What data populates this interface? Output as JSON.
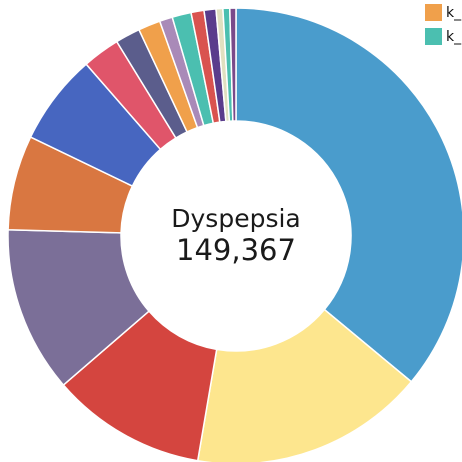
{
  "chart_data": {
    "type": "pie",
    "title": "",
    "center": {
      "label": "Dyspepsia",
      "value": "149,367"
    },
    "legend": {
      "placement": "top-right",
      "items": [
        {
          "label": "k_",
          "color": "#f0a04b"
        },
        {
          "label": "k_",
          "color": "#4bbfb0"
        }
      ]
    },
    "slices": [
      {
        "value": 149367,
        "color": "#4a9ccc"
      },
      {
        "value": 69000,
        "color": "#fde68e"
      },
      {
        "value": 45500,
        "color": "#d4453f"
      },
      {
        "value": 48800,
        "color": "#7b6f98"
      },
      {
        "value": 27800,
        "color": "#d97741"
      },
      {
        "value": 26700,
        "color": "#4766c0"
      },
      {
        "value": 11000,
        "color": "#e0556a"
      },
      {
        "value": 7300,
        "color": "#5b5d8c"
      },
      {
        "value": 6500,
        "color": "#f0a04b"
      },
      {
        "value": 3800,
        "color": "#a98ab8"
      },
      {
        "value": 5600,
        "color": "#4bbfb0"
      },
      {
        "value": 3800,
        "color": "#d9534f"
      },
      {
        "value": 3500,
        "color": "#5a3c8c"
      },
      {
        "value": 2000,
        "color": "#e0e0c0"
      },
      {
        "value": 2000,
        "color": "#4bbfb0"
      },
      {
        "value": 1800,
        "color": "#7a4a8a"
      }
    ]
  }
}
